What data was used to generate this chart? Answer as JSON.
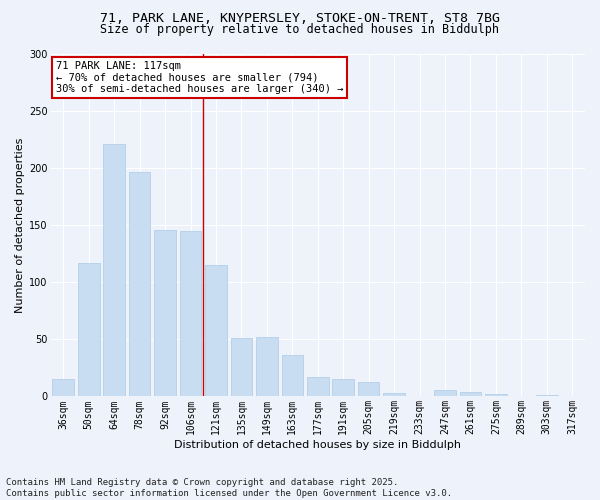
{
  "title_line1": "71, PARK LANE, KNYPERSLEY, STOKE-ON-TRENT, ST8 7BG",
  "title_line2": "Size of property relative to detached houses in Biddulph",
  "xlabel": "Distribution of detached houses by size in Biddulph",
  "ylabel": "Number of detached properties",
  "categories": [
    "36sqm",
    "50sqm",
    "64sqm",
    "78sqm",
    "92sqm",
    "106sqm",
    "121sqm",
    "135sqm",
    "149sqm",
    "163sqm",
    "177sqm",
    "191sqm",
    "205sqm",
    "219sqm",
    "233sqm",
    "247sqm",
    "261sqm",
    "275sqm",
    "289sqm",
    "303sqm",
    "317sqm"
  ],
  "values": [
    15,
    117,
    221,
    197,
    146,
    145,
    115,
    51,
    52,
    36,
    17,
    15,
    13,
    3,
    0,
    6,
    4,
    2,
    0,
    1,
    0
  ],
  "bar_color": "#c9ddf2",
  "bar_edge_color": "#aec9e8",
  "vline_color": "#cc0000",
  "annotation_title": "71 PARK LANE: 117sqm",
  "annotation_line1": "← 70% of detached houses are smaller (794)",
  "annotation_line2": "30% of semi-detached houses are larger (340) →",
  "annotation_box_color": "#ffffff",
  "annotation_box_edge": "#cc0000",
  "ylim": [
    0,
    300
  ],
  "yticks": [
    0,
    50,
    100,
    150,
    200,
    250,
    300
  ],
  "background_color": "#eef2fa",
  "footer_line1": "Contains HM Land Registry data © Crown copyright and database right 2025.",
  "footer_line2": "Contains public sector information licensed under the Open Government Licence v3.0.",
  "title_fontsize": 9.5,
  "subtitle_fontsize": 8.5,
  "axis_label_fontsize": 8,
  "tick_fontsize": 7,
  "footer_fontsize": 6.5,
  "annotation_fontsize": 7.5
}
